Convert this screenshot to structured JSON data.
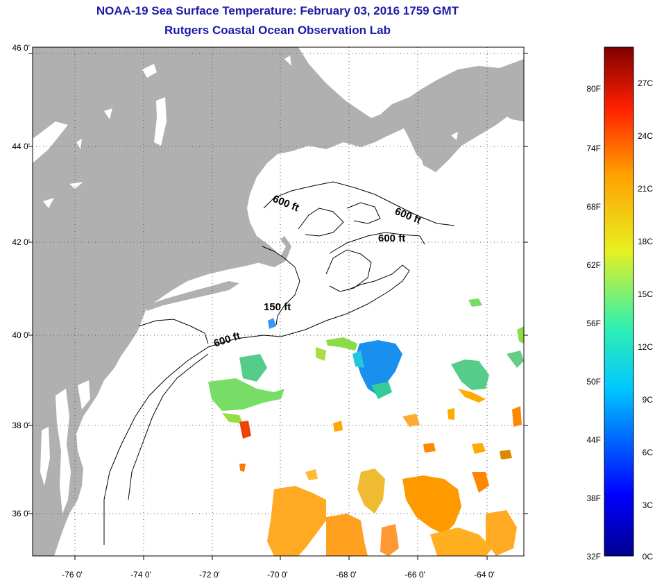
{
  "title": "NOAA-19 Sea Surface Temperature:  February 03, 2016 1759 GMT",
  "subtitle": "Rutgers Coastal Ocean Observation Lab",
  "map": {
    "lat_labels": [
      "46 0'",
      "44 0'",
      "42 0'",
      "40 0'",
      "38 0'",
      "36 0'"
    ],
    "lon_labels": [
      "-76 0'",
      "-74 0'",
      "-72 0'",
      "-70 0'",
      "-68 0'",
      "-66 0'",
      "-64 0'"
    ],
    "lat_range": [
      35,
      46
    ],
    "lon_range": [
      -77,
      -63
    ],
    "contour_labels": [
      "600 ft",
      "600 ft",
      "600 ft",
      "150 ft",
      "600 ft"
    ],
    "land_color": "#b0b0b0",
    "grid": true
  },
  "colorbar": {
    "fahrenheit_labels": [
      "80F",
      "74F",
      "68F",
      "62F",
      "56F",
      "50F",
      "44F",
      "38F",
      "32F"
    ],
    "celsius_labels": [
      "27C",
      "24C",
      "21C",
      "18C",
      "15C",
      "12C",
      "9C",
      "6C",
      "3C",
      "0C"
    ],
    "range_c": [
      0,
      29
    ]
  }
}
